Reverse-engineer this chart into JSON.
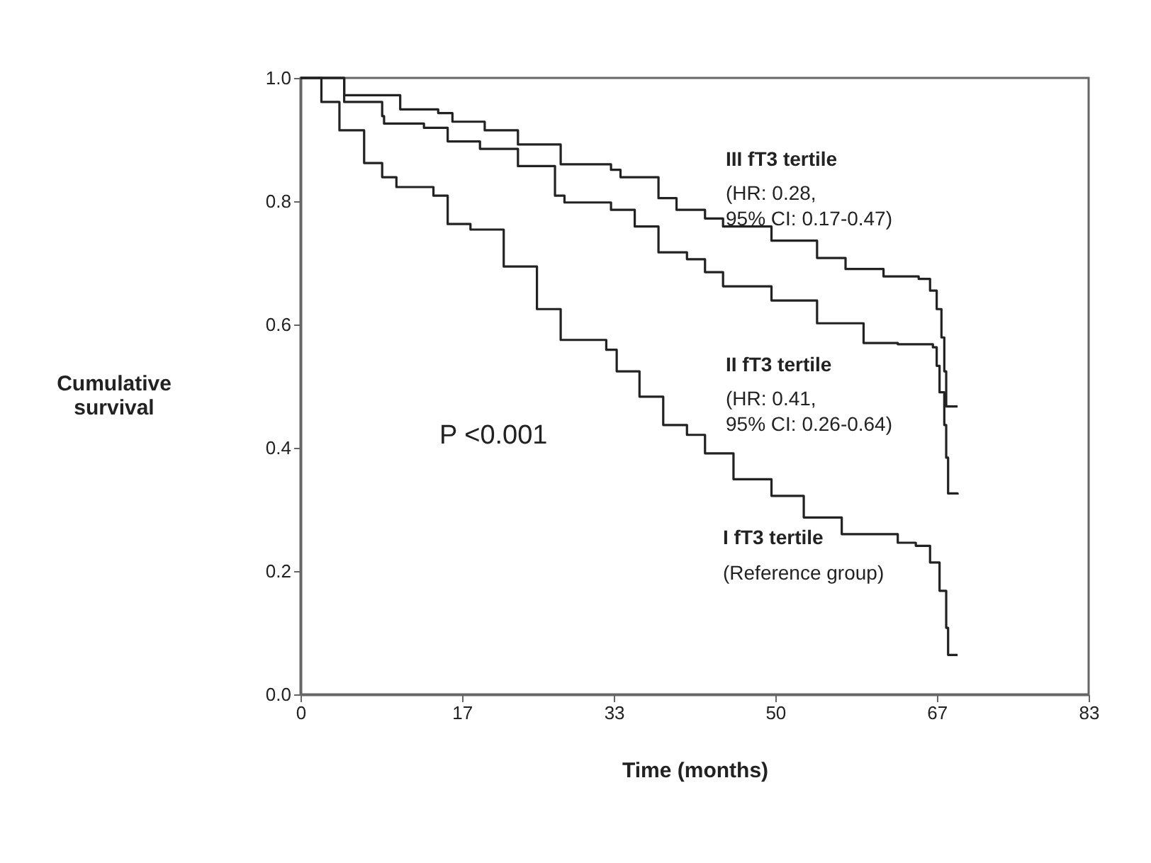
{
  "chart_data": {
    "type": "step",
    "xlabel": "Time (months)",
    "ylabel": "Cumulative survival",
    "xlim": [
      0,
      83
    ],
    "xticks": [
      0,
      17,
      33,
      50,
      67,
      83
    ],
    "ylim": [
      0,
      1
    ],
    "yticks": [
      {
        "value": 0,
        "label": "0.0"
      },
      {
        "value": 0.2,
        "label": "0.2"
      },
      {
        "value": 0.4,
        "label": "0.4"
      },
      {
        "value": 0.6,
        "label": "0.6"
      },
      {
        "value": 0.8,
        "label": "0.8"
      },
      {
        "value": 1,
        "label": "1.0"
      }
    ],
    "series": [
      {
        "name": "III fT3 tertile",
        "color": "#222222",
        "x": [
          0,
          4.6,
          10.5,
          14.5,
          16,
          19.4,
          22.9,
          27.4,
          32.7,
          33.7,
          37.7,
          39.6,
          42.6,
          44.5,
          49.6,
          54.4,
          57.4,
          61.4,
          65.1,
          66.3,
          67,
          67.5,
          67.8,
          68,
          69.2
        ],
        "values": [
          1,
          0.972,
          0.949,
          0.943,
          0.929,
          0.915,
          0.892,
          0.86,
          0.851,
          0.839,
          0.805,
          0.786,
          0.772,
          0.759,
          0.736,
          0.708,
          0.69,
          0.678,
          0.674,
          0.655,
          0.625,
          0.579,
          0.524,
          0.467,
          0.467
        ]
      },
      {
        "name": "II fT3 tertile",
        "color": "#222222",
        "x": [
          0,
          4.6,
          8.6,
          8.8,
          13,
          15.5,
          18.9,
          22.9,
          26.8,
          27.8,
          32.7,
          35.2,
          37.7,
          40.7,
          42.6,
          44.5,
          49.6,
          54.4,
          59.3,
          62.9,
          66.6,
          67,
          67.3,
          67.8,
          68,
          68.2,
          69.2
        ],
        "values": [
          1,
          0.961,
          0.938,
          0.926,
          0.919,
          0.897,
          0.885,
          0.857,
          0.809,
          0.798,
          0.786,
          0.759,
          0.717,
          0.706,
          0.685,
          0.662,
          0.639,
          0.602,
          0.57,
          0.568,
          0.563,
          0.533,
          0.49,
          0.437,
          0.384,
          0.326,
          0.324
        ]
      },
      {
        "name": "I fT3 tertile",
        "color": "#222222",
        "x": [
          0,
          2.2,
          4.1,
          6.7,
          8.6,
          10.1,
          14,
          15.5,
          17.9,
          21.4,
          24.9,
          27.4,
          32.2,
          33.3,
          35.7,
          38.2,
          40.7,
          42.6,
          45.6,
          49.6,
          53,
          57,
          62.9,
          64.8,
          66.3,
          67.3,
          68,
          68.2,
          69.2
        ],
        "values": [
          1,
          0.961,
          0.915,
          0.862,
          0.839,
          0.823,
          0.809,
          0.763,
          0.754,
          0.694,
          0.625,
          0.575,
          0.559,
          0.524,
          0.483,
          0.437,
          0.421,
          0.391,
          0.349,
          0.322,
          0.287,
          0.26,
          0.246,
          0.241,
          0.214,
          0.168,
          0.108,
          0.064,
          0.064
        ]
      }
    ],
    "annotations": [
      "(HR: 0.28,\n95% CI: 0.17-0.47)",
      "(HR: 0.41,\n95% CI: 0.26-0.64)",
      "(Reference group)",
      "P <0.001"
    ]
  }
}
